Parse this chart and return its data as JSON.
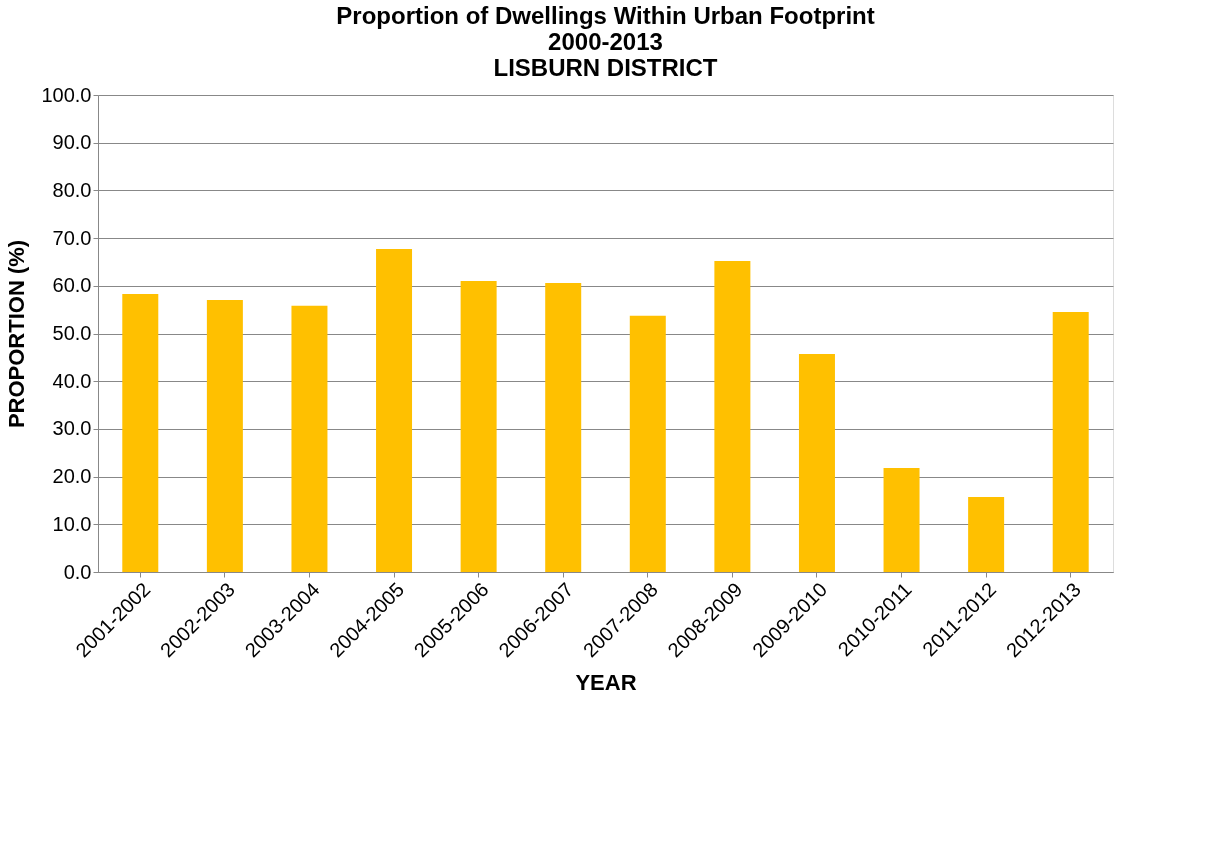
{
  "chart_data": {
    "type": "bar",
    "title": "Proportion of Dwellings Within Urban Footprint\n2000-2013\nLISBURN DISTRICT",
    "xlabel": "YEAR",
    "ylabel": "PROPORTION (%)",
    "categories": [
      "2001-2002",
      "2002-2003",
      "2003-2004",
      "2004-2005",
      "2005-2006",
      "2006-2007",
      "2007-2008",
      "2008-2009",
      "2009-2010",
      "2010-2011",
      "2011-2012",
      "2012-2013"
    ],
    "values": [
      58.3,
      57.0,
      55.8,
      67.7,
      61.0,
      60.6,
      53.7,
      65.2,
      45.7,
      21.8,
      15.7,
      54.5
    ],
    "color": "#ffc000",
    "ylim": [
      0,
      100
    ],
    "yticks": [
      {
        "value": 0,
        "label": "0.0"
      },
      {
        "value": 10,
        "label": "10.0"
      },
      {
        "value": 20,
        "label": "20.0"
      },
      {
        "value": 30,
        "label": "30.0"
      },
      {
        "value": 40,
        "label": "40.0"
      },
      {
        "value": 50,
        "label": "50.0"
      },
      {
        "value": 60,
        "label": "60.0"
      },
      {
        "value": 70,
        "label": "70.0"
      },
      {
        "value": 80,
        "label": "80.0"
      },
      {
        "value": 90,
        "label": "90.0"
      },
      {
        "value": 100,
        "label": "100.0"
      }
    ],
    "grid": "y"
  }
}
